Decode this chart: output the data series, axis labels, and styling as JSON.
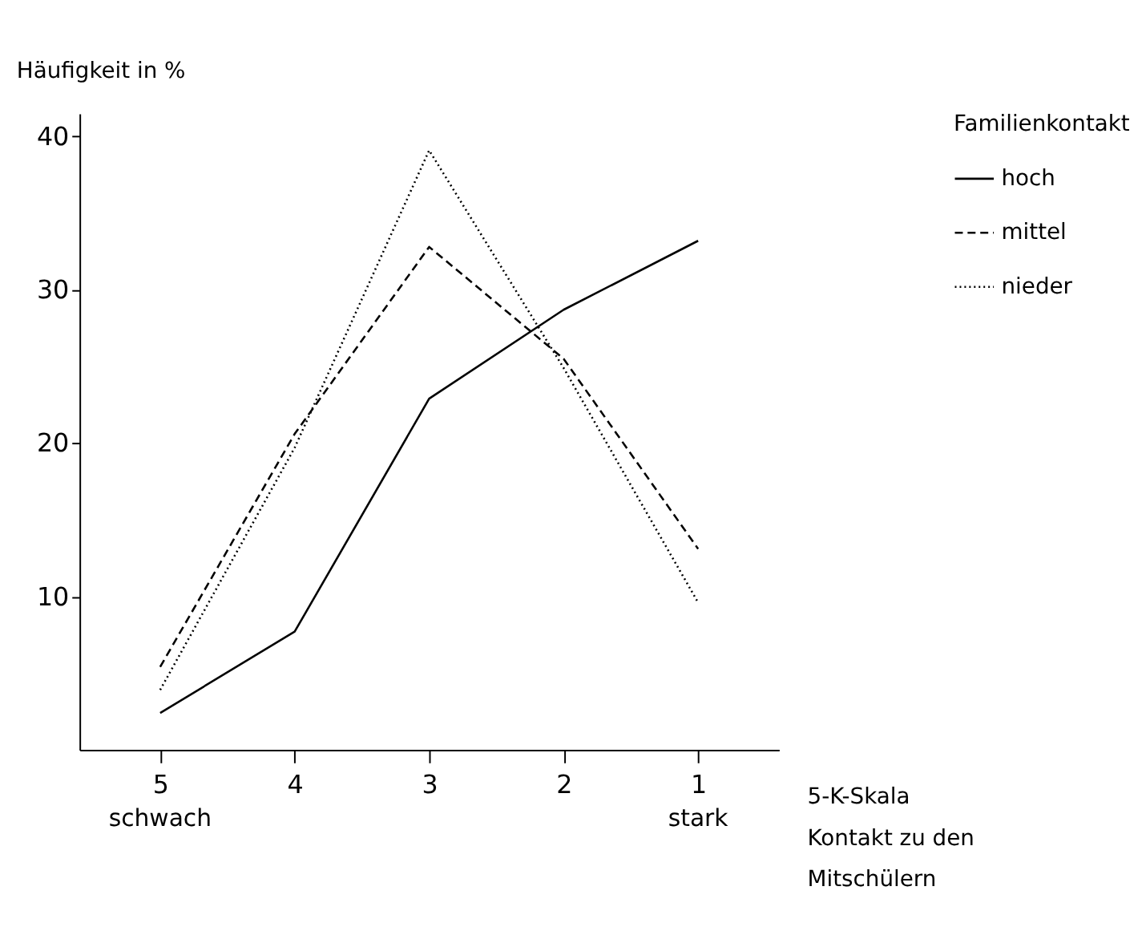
{
  "chart_data": {
    "type": "line",
    "ylabel": "Häufigkeit in %",
    "xlabel": "5-K-Skala\nKontakt zu den\nMitschülern",
    "legend_title": "Familienkontakt",
    "legend": "right",
    "categories": [
      "5",
      "4",
      "3",
      "2",
      "1"
    ],
    "series": [
      {
        "name": "hoch",
        "color": "#000000",
        "line_style": "solid",
        "values": [
          2.4,
          7.7,
          22.9,
          28.7,
          33.2
        ]
      },
      {
        "name": "mittel",
        "color": "#000000",
        "line_style": "dashed",
        "values": [
          5.4,
          20.6,
          32.8,
          25.5,
          13.1
        ]
      },
      {
        "name": "nieder",
        "color": "#000000",
        "line_style": "dotted",
        "values": [
          3.9,
          19.7,
          39.1,
          24.9,
          9.6
        ]
      }
    ],
    "annotations": [
      "schwach",
      "stark"
    ],
    "ylim": [
      0,
      41.5
    ],
    "yticks": [
      10,
      20,
      30,
      40
    ],
    "grid": false,
    "marker": "none"
  }
}
